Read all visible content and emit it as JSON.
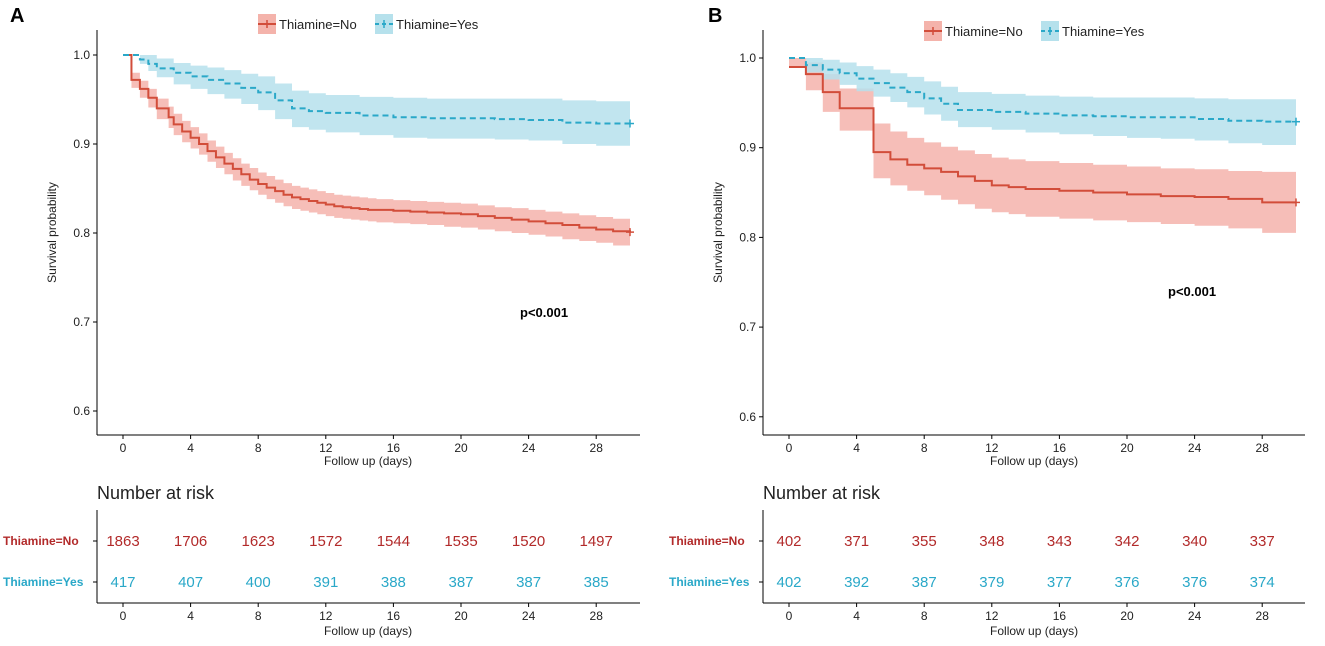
{
  "chart_data": [
    {
      "type": "line",
      "panel_label": "A",
      "title": "",
      "xlabel": "Follow up (days)",
      "ylabel": "Survival probability",
      "xlim": [
        0,
        30
      ],
      "ylim": [
        0.6,
        1.0
      ],
      "xticks": [
        0,
        4,
        8,
        12,
        16,
        20,
        24,
        28
      ],
      "yticks": [
        0.6,
        0.7,
        0.8,
        0.9,
        1.0
      ],
      "ytick_labels": [
        "0.6",
        "0.7",
        "0.8",
        "0.9",
        "1.0"
      ],
      "legend": [
        "Thiamine=No",
        "Thiamine=Yes"
      ],
      "legend_position": "top",
      "annotation": "p<0.001",
      "series": [
        {
          "name": "Thiamine=No",
          "color": "#d24d3a",
          "band_color": "#f4b3ab",
          "style": "solid",
          "x": [
            0,
            0.5,
            1,
            1.5,
            2,
            2.7,
            3,
            3.5,
            4,
            4.5,
            5,
            5.5,
            6,
            6.5,
            7,
            7.5,
            8,
            8.5,
            9,
            9.5,
            10,
            10.5,
            11,
            11.5,
            12,
            12.5,
            13,
            13.5,
            14,
            14.5,
            15,
            16,
            17,
            18,
            19,
            20,
            21,
            22,
            23,
            24,
            25,
            26,
            27,
            28,
            29,
            30
          ],
          "y": [
            1.0,
            0.972,
            0.962,
            0.952,
            0.94,
            0.93,
            0.922,
            0.914,
            0.907,
            0.9,
            0.892,
            0.885,
            0.878,
            0.872,
            0.866,
            0.86,
            0.855,
            0.851,
            0.847,
            0.843,
            0.84,
            0.838,
            0.836,
            0.834,
            0.832,
            0.83,
            0.829,
            0.828,
            0.827,
            0.826,
            0.826,
            0.825,
            0.824,
            0.823,
            0.822,
            0.821,
            0.819,
            0.817,
            0.815,
            0.813,
            0.811,
            0.809,
            0.806,
            0.804,
            0.802,
            0.801
          ],
          "lower": [
            1.0,
            0.963,
            0.952,
            0.941,
            0.928,
            0.918,
            0.91,
            0.902,
            0.895,
            0.888,
            0.88,
            0.873,
            0.866,
            0.859,
            0.853,
            0.848,
            0.843,
            0.838,
            0.834,
            0.83,
            0.827,
            0.825,
            0.823,
            0.821,
            0.819,
            0.817,
            0.816,
            0.815,
            0.814,
            0.813,
            0.812,
            0.811,
            0.81,
            0.809,
            0.807,
            0.806,
            0.804,
            0.802,
            0.8,
            0.798,
            0.796,
            0.793,
            0.791,
            0.789,
            0.786,
            0.784
          ],
          "upper": [
            1.0,
            0.98,
            0.971,
            0.962,
            0.951,
            0.942,
            0.934,
            0.926,
            0.919,
            0.912,
            0.904,
            0.897,
            0.89,
            0.884,
            0.878,
            0.873,
            0.868,
            0.864,
            0.86,
            0.856,
            0.853,
            0.851,
            0.849,
            0.847,
            0.845,
            0.843,
            0.842,
            0.841,
            0.84,
            0.839,
            0.838,
            0.837,
            0.836,
            0.835,
            0.834,
            0.833,
            0.831,
            0.829,
            0.828,
            0.826,
            0.824,
            0.822,
            0.82,
            0.818,
            0.816,
            0.815
          ]
        },
        {
          "name": "Thiamine=Yes",
          "color": "#2aa8c8",
          "band_color": "#b6e1ec",
          "style": "dashed",
          "x": [
            0,
            1,
            1.5,
            2,
            3,
            4,
            5,
            6,
            7,
            8,
            9,
            10,
            11,
            12,
            14,
            16,
            18,
            20,
            22,
            24,
            26,
            28,
            30
          ],
          "y": [
            1.0,
            0.995,
            0.99,
            0.985,
            0.98,
            0.976,
            0.972,
            0.968,
            0.963,
            0.958,
            0.949,
            0.94,
            0.937,
            0.935,
            0.932,
            0.93,
            0.929,
            0.929,
            0.928,
            0.927,
            0.924,
            0.923,
            0.923
          ],
          "lower": [
            1.0,
            0.99,
            0.982,
            0.975,
            0.967,
            0.962,
            0.956,
            0.951,
            0.945,
            0.938,
            0.928,
            0.919,
            0.916,
            0.913,
            0.91,
            0.907,
            0.906,
            0.906,
            0.905,
            0.904,
            0.9,
            0.898,
            0.898
          ],
          "upper": [
            1.0,
            1.0,
            1.0,
            0.996,
            0.991,
            0.988,
            0.986,
            0.983,
            0.979,
            0.976,
            0.968,
            0.96,
            0.957,
            0.955,
            0.953,
            0.952,
            0.951,
            0.951,
            0.951,
            0.951,
            0.949,
            0.948,
            0.948
          ]
        }
      ],
      "risk_table": {
        "title": "Number at risk",
        "xlabel": "Follow up (days)",
        "xticks": [
          0,
          4,
          8,
          12,
          16,
          20,
          24,
          28
        ],
        "rows": [
          {
            "label": "Thiamine=No",
            "color": "#b22a2a",
            "values": [
              "1863",
              "1706",
              "1623",
              "1572",
              "1544",
              "1535",
              "1520",
              "1497"
            ]
          },
          {
            "label": "Thiamine=Yes",
            "color": "#2aa8c8",
            "values": [
              "417",
              "407",
              "400",
              "391",
              "388",
              "387",
              "387",
              "385"
            ]
          }
        ]
      }
    },
    {
      "type": "line",
      "panel_label": "B",
      "title": "",
      "xlabel": "Follow up (days)",
      "ylabel": "Survival probability",
      "xlim": [
        0,
        30
      ],
      "ylim": [
        0.6,
        1.0
      ],
      "xticks": [
        0,
        4,
        8,
        12,
        16,
        20,
        24,
        28
      ],
      "yticks": [
        0.6,
        0.7,
        0.8,
        0.9,
        1.0
      ],
      "ytick_labels": [
        "0.6",
        "0.7",
        "0.8",
        "0.9",
        "1.0"
      ],
      "legend": [
        "Thiamine=No",
        "Thiamine=Yes"
      ],
      "legend_position": "top",
      "annotation": "p<0.001",
      "series": [
        {
          "name": "Thiamine=No",
          "color": "#d24d3a",
          "band_color": "#f4b3ab",
          "style": "solid",
          "x": [
            0,
            1,
            2,
            3,
            5,
            6,
            7,
            8,
            9,
            10,
            11,
            12,
            13,
            14,
            16,
            18,
            20,
            22,
            24,
            26,
            28,
            30
          ],
          "y": [
            0.99,
            0.982,
            0.962,
            0.944,
            0.895,
            0.887,
            0.881,
            0.877,
            0.873,
            0.868,
            0.863,
            0.858,
            0.856,
            0.854,
            0.852,
            0.85,
            0.848,
            0.846,
            0.845,
            0.843,
            0.839,
            0.839
          ],
          "lower": [
            0.99,
            0.964,
            0.94,
            0.919,
            0.866,
            0.858,
            0.852,
            0.847,
            0.842,
            0.837,
            0.832,
            0.828,
            0.826,
            0.823,
            0.821,
            0.819,
            0.817,
            0.815,
            0.813,
            0.81,
            0.805,
            0.805
          ],
          "upper": [
            1.0,
            0.995,
            0.982,
            0.966,
            0.927,
            0.918,
            0.911,
            0.906,
            0.901,
            0.897,
            0.893,
            0.889,
            0.887,
            0.885,
            0.883,
            0.881,
            0.879,
            0.877,
            0.876,
            0.874,
            0.873,
            0.873
          ]
        },
        {
          "name": "Thiamine=Yes",
          "color": "#2aa8c8",
          "band_color": "#b6e1ec",
          "style": "dashed",
          "x": [
            0,
            1,
            2,
            3,
            4,
            5,
            6,
            7,
            8,
            9,
            10,
            12,
            14,
            16,
            18,
            20,
            22,
            24,
            26,
            28,
            30
          ],
          "y": [
            1.0,
            0.992,
            0.987,
            0.983,
            0.977,
            0.972,
            0.967,
            0.962,
            0.955,
            0.949,
            0.942,
            0.94,
            0.938,
            0.936,
            0.935,
            0.934,
            0.934,
            0.932,
            0.93,
            0.929,
            0.929
          ],
          "lower": [
            1.0,
            0.984,
            0.976,
            0.97,
            0.963,
            0.957,
            0.951,
            0.945,
            0.937,
            0.93,
            0.923,
            0.92,
            0.917,
            0.915,
            0.913,
            0.911,
            0.91,
            0.908,
            0.905,
            0.903,
            0.903
          ],
          "upper": [
            1.0,
            1.0,
            0.998,
            0.995,
            0.991,
            0.987,
            0.983,
            0.979,
            0.974,
            0.968,
            0.962,
            0.96,
            0.958,
            0.957,
            0.956,
            0.956,
            0.956,
            0.955,
            0.954,
            0.954,
            0.954
          ]
        }
      ],
      "risk_table": {
        "title": "Number at risk",
        "xlabel": "Follow up (days)",
        "xticks": [
          0,
          4,
          8,
          12,
          16,
          20,
          24,
          28
        ],
        "rows": [
          {
            "label": "Thiamine=No",
            "color": "#b22a2a",
            "values": [
              "402",
              "371",
              "355",
              "348",
              "343",
              "342",
              "340",
              "337"
            ]
          },
          {
            "label": "Thiamine=Yes",
            "color": "#2aa8c8",
            "values": [
              "402",
              "392",
              "387",
              "379",
              "377",
              "376",
              "376",
              "374"
            ]
          }
        ]
      }
    }
  ]
}
